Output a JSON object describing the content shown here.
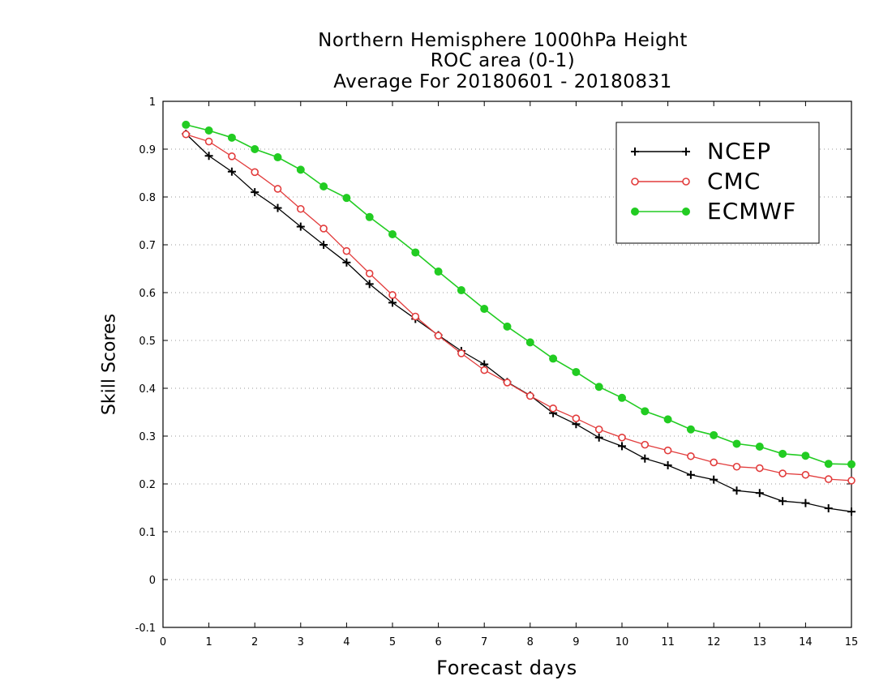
{
  "chart_data": {
    "type": "line",
    "title": "Northern Hemisphere 1000hPa Height",
    "subtitle": "ROC area (0-1)",
    "subtitle2": "Average For 20180601 - 20180831",
    "xlabel": "Forecast days",
    "ylabel": "Skill Scores",
    "xlim": [
      0,
      15
    ],
    "ylim": [
      -0.1,
      1
    ],
    "x_ticks": [
      "0",
      "1",
      "2",
      "3",
      "4",
      "5",
      "6",
      "7",
      "8",
      "9",
      "10",
      "11",
      "12",
      "13",
      "14",
      "15"
    ],
    "y_ticks": [
      "-0.1",
      "0",
      "0.1",
      "0.2",
      "0.3",
      "0.4",
      "0.5",
      "0.6",
      "0.7",
      "0.8",
      "0.9",
      "1"
    ],
    "grid": "horizontal dotted",
    "legend_position": "top-right",
    "x": [
      0.5,
      1,
      1.5,
      2,
      2.5,
      3,
      3.5,
      4,
      4.5,
      5,
      5.5,
      6,
      6.5,
      7,
      7.5,
      8,
      8.5,
      9,
      9.5,
      10,
      10.5,
      11,
      11.5,
      12,
      12.5,
      13,
      13.5,
      14,
      14.5,
      15
    ],
    "series": [
      {
        "name": "NCEP",
        "color": "#000000",
        "marker": "plus",
        "values": [
          0.932,
          0.886,
          0.853,
          0.81,
          0.777,
          0.738,
          0.7,
          0.663,
          0.618,
          0.579,
          0.545,
          0.511,
          0.478,
          0.45,
          0.413,
          0.385,
          0.348,
          0.325,
          0.297,
          0.279,
          0.253,
          0.239,
          0.219,
          0.209,
          0.186,
          0.181,
          0.164,
          0.16,
          0.149,
          0.142
        ]
      },
      {
        "name": "CMC",
        "color": "#e23c3c",
        "marker": "open-circle",
        "values": [
          0.931,
          0.916,
          0.885,
          0.852,
          0.817,
          0.775,
          0.734,
          0.687,
          0.64,
          0.595,
          0.55,
          0.51,
          0.473,
          0.438,
          0.412,
          0.384,
          0.358,
          0.337,
          0.314,
          0.297,
          0.282,
          0.27,
          0.258,
          0.245,
          0.236,
          0.233,
          0.222,
          0.219,
          0.21,
          0.207
        ]
      },
      {
        "name": "ECMWF",
        "color": "#22cc22",
        "marker": "filled-circle",
        "values": [
          0.951,
          0.939,
          0.924,
          0.9,
          0.883,
          0.857,
          0.822,
          0.798,
          0.758,
          0.722,
          0.684,
          0.644,
          0.605,
          0.566,
          0.529,
          0.496,
          0.462,
          0.434,
          0.403,
          0.38,
          0.352,
          0.335,
          0.314,
          0.302,
          0.284,
          0.278,
          0.263,
          0.259,
          0.242,
          0.241
        ]
      }
    ]
  }
}
